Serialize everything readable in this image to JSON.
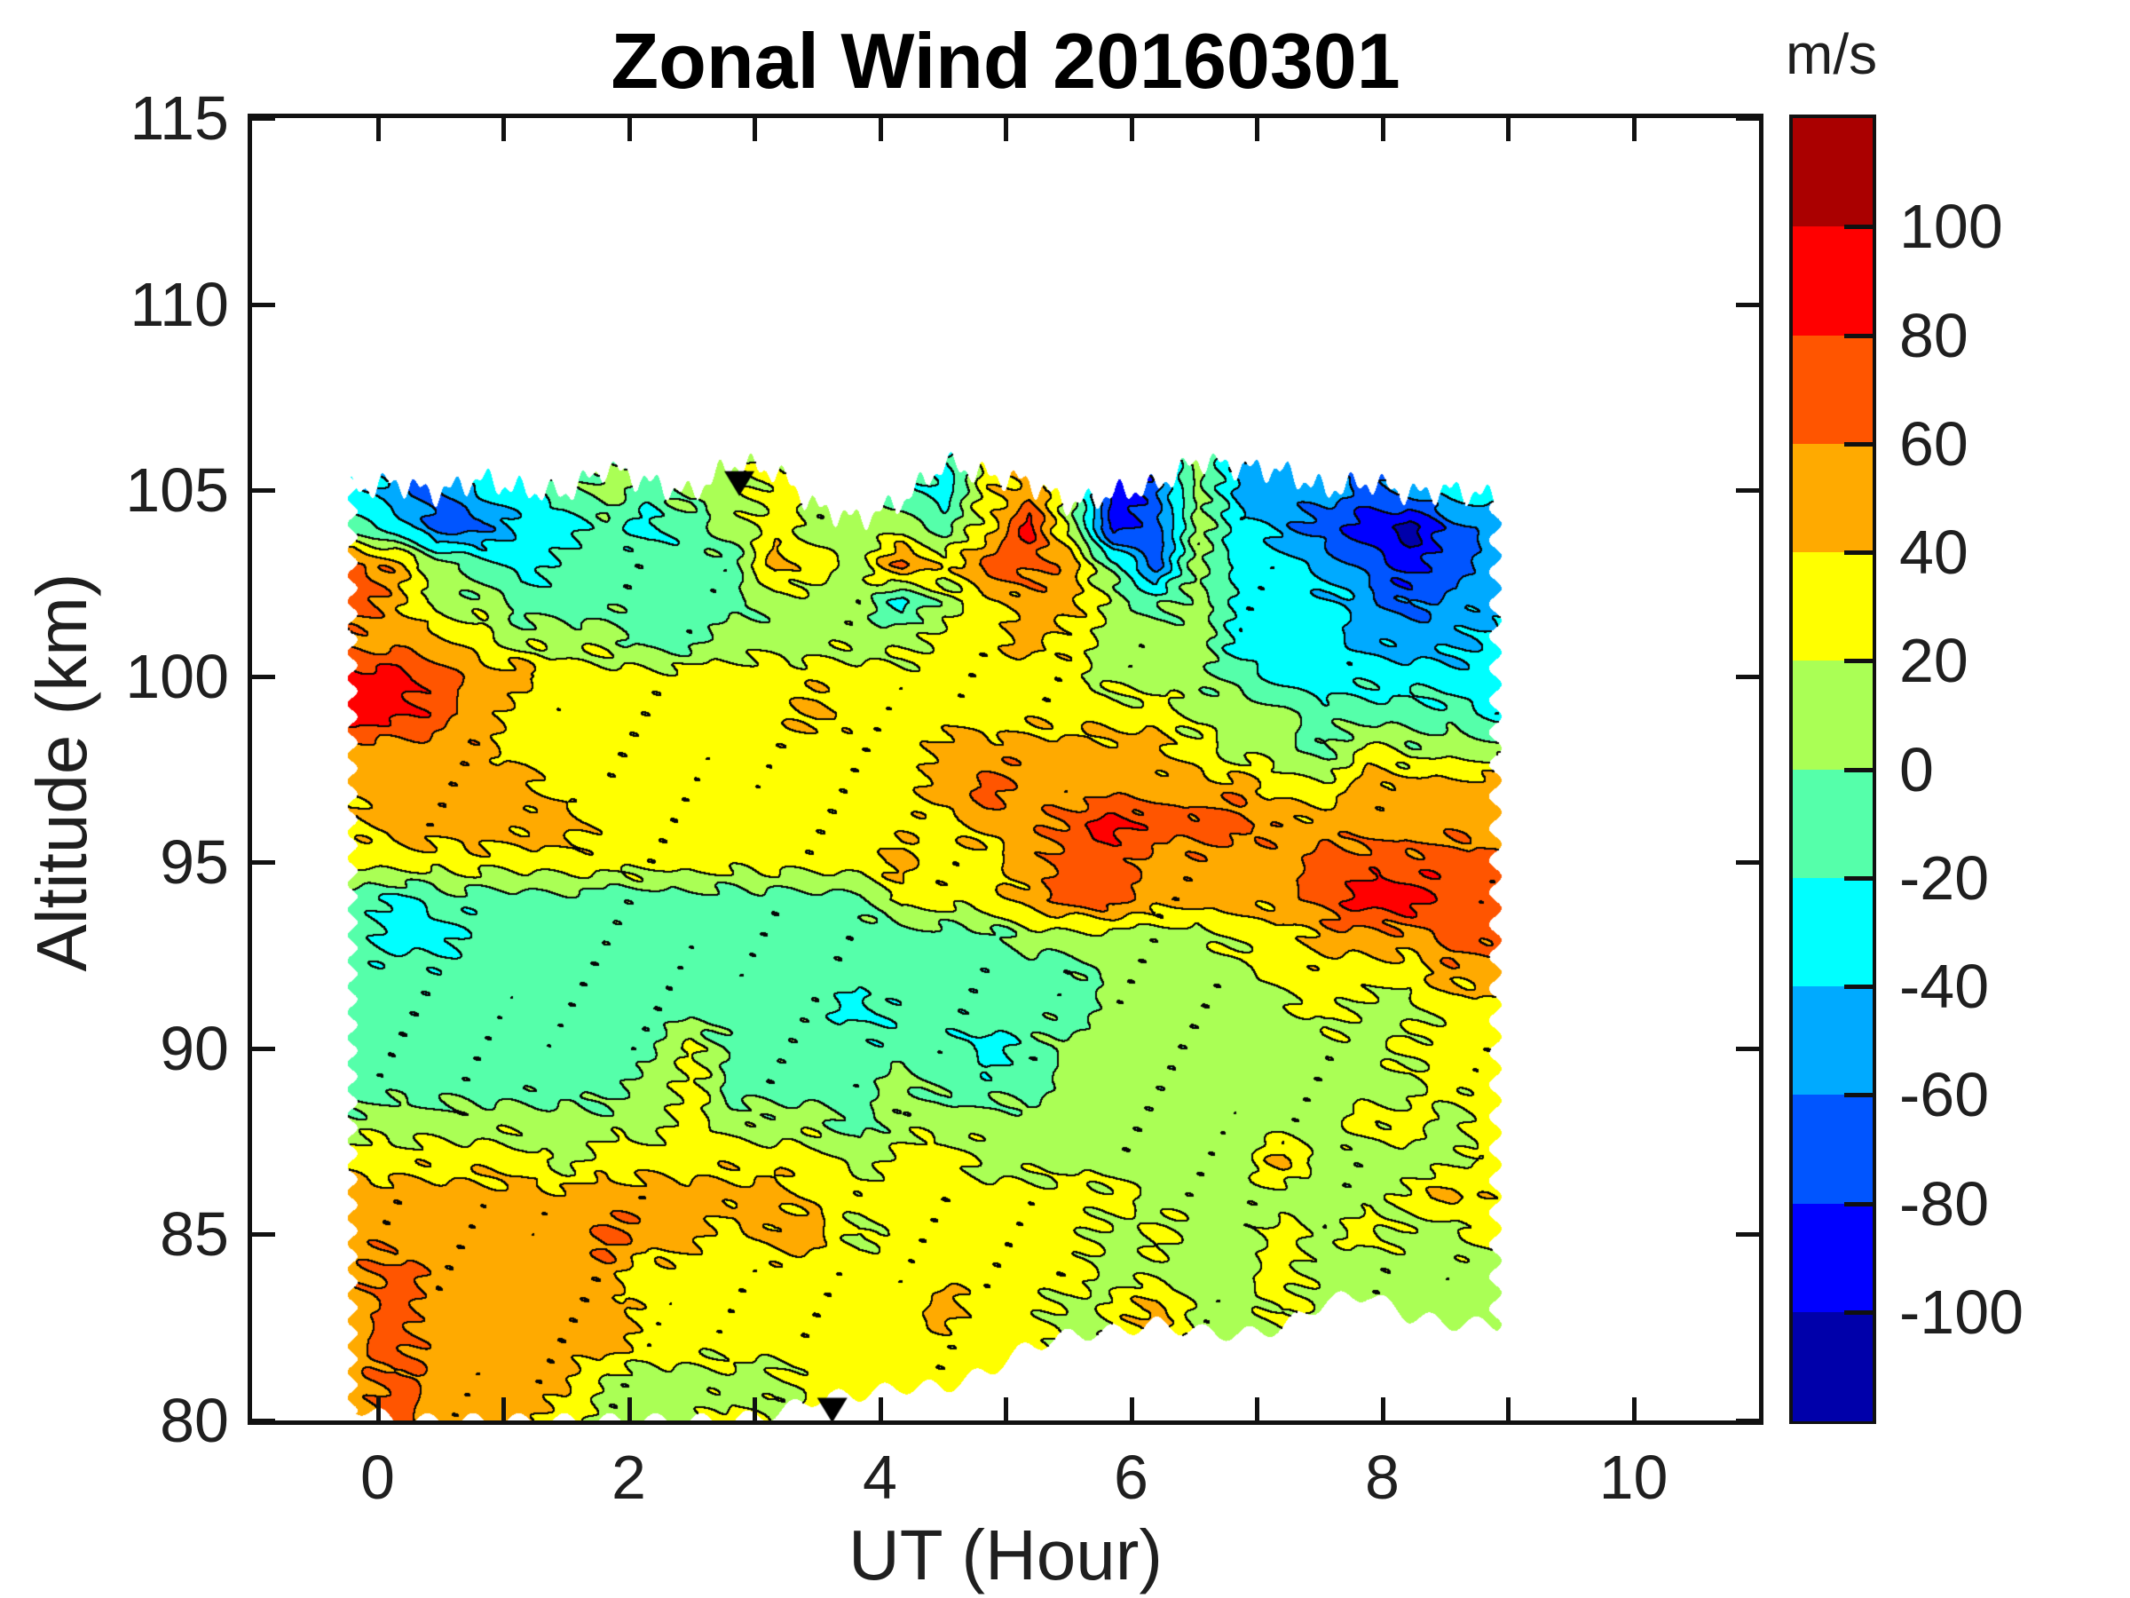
{
  "title": "Zonal Wind 20160301",
  "axes": {
    "xlabel": "UT (Hour)",
    "ylabel": "Altitude (km)",
    "x_tick_values": [
      0,
      2,
      4,
      6,
      8,
      10
    ],
    "x_tick_labels": [
      "0",
      "2",
      "4",
      "6",
      "8",
      "10"
    ],
    "x_minor_tick_values": [
      1,
      3,
      5,
      7,
      9
    ],
    "y_tick_values": [
      115,
      110,
      105,
      100,
      95,
      90,
      85,
      80
    ],
    "y_tick_labels": [
      "115",
      "110",
      "105",
      "100",
      "95",
      "90",
      "85",
      "80"
    ]
  },
  "colorbar": {
    "title": "m/s",
    "tick_labels": [
      "100",
      "80",
      "60",
      "40",
      "20",
      "0",
      "-20",
      "-40",
      "-60",
      "-80",
      "-100"
    ],
    "tick_values": [
      100,
      80,
      60,
      40,
      20,
      0,
      -20,
      -40,
      -60,
      -80,
      -100
    ],
    "segment_colors_top_to_bottom": [
      "#AA0000",
      "#FF0000",
      "#FF5500",
      "#FFAA00",
      "#FFFF00",
      "#AAFF55",
      "#55FFAA",
      "#00FFFF",
      "#00AAFF",
      "#0055FF",
      "#0000FF",
      "#0000AA"
    ]
  },
  "chart_data": {
    "type": "heatmap",
    "subtype": "filled_contour",
    "title": "Zonal Wind 20160301",
    "xlabel": "UT (Hour)",
    "ylabel": "Altitude (km)",
    "unit": "m/s",
    "xlim": [
      -1,
      11
    ],
    "ylim": [
      80,
      115
    ],
    "clim": [
      -120,
      120
    ],
    "level_step": 20,
    "band_colors_low_to_high": [
      "#0000AA",
      "#0000FF",
      "#0055FF",
      "#00AAFF",
      "#00FFFF",
      "#55FFAA",
      "#AAFF55",
      "#FFFF00",
      "#FFAA00",
      "#FF5500",
      "#FF0000",
      "#AA0000"
    ],
    "x_start": -0.2,
    "x_step": 0.33667,
    "y_start": 80,
    "y_step": 1.0,
    "x_hours": [
      -0.2,
      0.14,
      0.47,
      0.81,
      1.15,
      1.48,
      1.82,
      2.16,
      2.49,
      2.83,
      3.17,
      3.5,
      3.84,
      4.18,
      4.51,
      4.85,
      5.19,
      5.52,
      5.86,
      6.2,
      6.53,
      6.87,
      7.21,
      7.54,
      7.88,
      8.22,
      8.55,
      8.89
    ],
    "values_rows_80_to_106": [
      [
        50,
        70,
        50,
        50,
        50,
        30,
        10,
        10,
        10,
        30,
        10,
        30,
        30,
        30,
        30,
        30,
        30,
        10,
        10,
        50,
        10,
        10,
        10,
        10,
        10,
        10,
        10,
        10
      ],
      [
        50,
        70,
        50,
        50,
        50,
        50,
        10,
        10,
        10,
        10,
        10,
        30,
        30,
        30,
        30,
        30,
        30,
        10,
        10,
        50,
        10,
        10,
        10,
        10,
        10,
        10,
        10,
        10
      ],
      [
        50,
        70,
        50,
        50,
        50,
        50,
        50,
        30,
        30,
        30,
        30,
        30,
        30,
        30,
        30,
        30,
        30,
        10,
        10,
        50,
        10,
        10,
        10,
        10,
        10,
        10,
        10,
        10
      ],
      [
        50,
        70,
        50,
        50,
        50,
        50,
        50,
        30,
        30,
        30,
        30,
        30,
        30,
        30,
        50,
        30,
        30,
        10,
        30,
        50,
        10,
        10,
        30,
        10,
        10,
        10,
        10,
        10
      ],
      [
        50,
        70,
        50,
        50,
        50,
        50,
        50,
        30,
        30,
        30,
        30,
        30,
        30,
        30,
        30,
        30,
        30,
        30,
        10,
        10,
        10,
        10,
        30,
        10,
        10,
        10,
        10,
        10
      ],
      [
        50,
        50,
        50,
        50,
        50,
        50,
        70,
        50,
        50,
        30,
        50,
        50,
        10,
        30,
        30,
        30,
        30,
        30,
        10,
        30,
        10,
        10,
        30,
        10,
        30,
        10,
        10,
        30
      ],
      [
        50,
        50,
        50,
        50,
        50,
        50,
        50,
        50,
        50,
        50,
        50,
        30,
        30,
        30,
        30,
        30,
        30,
        30,
        30,
        10,
        10,
        10,
        10,
        10,
        10,
        30,
        50,
        30
      ],
      [
        30,
        30,
        30,
        30,
        30,
        10,
        30,
        30,
        30,
        30,
        30,
        30,
        10,
        30,
        30,
        10,
        10,
        10,
        10,
        10,
        10,
        10,
        50,
        10,
        10,
        10,
        10,
        30
      ],
      [
        10,
        10,
        10,
        10,
        10,
        10,
        10,
        10,
        30,
        10,
        10,
        10,
        -10,
        10,
        10,
        10,
        10,
        10,
        10,
        10,
        10,
        10,
        10,
        10,
        30,
        30,
        10,
        30
      ],
      [
        -10,
        -10,
        -10,
        -10,
        -10,
        -10,
        -10,
        10,
        30,
        -10,
        -10,
        -10,
        -10,
        10,
        -10,
        -10,
        -10,
        10,
        10,
        10,
        10,
        10,
        10,
        10,
        10,
        10,
        30,
        30
      ],
      [
        -10,
        -10,
        -10,
        -10,
        -10,
        -10,
        -10,
        -10,
        30,
        -10,
        -10,
        -10,
        -10,
        -10,
        -10,
        -30,
        -10,
        10,
        10,
        10,
        10,
        10,
        10,
        10,
        10,
        30,
        30,
        30
      ],
      [
        -10,
        -10,
        -10,
        -10,
        -10,
        -10,
        -10,
        -10,
        -10,
        -10,
        -10,
        -10,
        -30,
        -10,
        -10,
        -10,
        -10,
        -10,
        10,
        10,
        10,
        10,
        10,
        30,
        10,
        10,
        30,
        30
      ],
      [
        -10,
        -10,
        -10,
        -10,
        -10,
        -10,
        -10,
        -10,
        -10,
        -10,
        -10,
        -10,
        -10,
        -10,
        -10,
        -10,
        -10,
        -10,
        10,
        10,
        10,
        10,
        30,
        30,
        30,
        30,
        50,
        50
      ],
      [
        -10,
        -30,
        -30,
        -10,
        -10,
        -10,
        -10,
        -10,
        -10,
        -10,
        -10,
        -10,
        -10,
        -10,
        -10,
        -10,
        10,
        10,
        10,
        10,
        10,
        30,
        30,
        50,
        50,
        50,
        70,
        70
      ],
      [
        -10,
        -30,
        -10,
        -10,
        -10,
        -10,
        -10,
        -10,
        -10,
        -10,
        -10,
        -10,
        -10,
        30,
        30,
        30,
        50,
        70,
        70,
        50,
        50,
        50,
        50,
        70,
        90,
        90,
        70,
        70
      ],
      [
        30,
        30,
        30,
        30,
        30,
        30,
        30,
        30,
        30,
        30,
        30,
        30,
        30,
        50,
        30,
        30,
        50,
        70,
        70,
        50,
        50,
        50,
        50,
        70,
        70,
        70,
        70,
        70
      ],
      [
        30,
        50,
        50,
        50,
        50,
        50,
        30,
        30,
        30,
        30,
        30,
        30,
        30,
        30,
        30,
        50,
        50,
        70,
        90,
        70,
        70,
        70,
        50,
        50,
        50,
        50,
        50,
        50
      ],
      [
        50,
        50,
        50,
        50,
        50,
        30,
        30,
        30,
        30,
        30,
        30,
        30,
        30,
        30,
        50,
        70,
        50,
        50,
        50,
        50,
        50,
        50,
        30,
        30,
        50,
        50,
        50,
        50
      ],
      [
        50,
        50,
        50,
        50,
        30,
        30,
        30,
        30,
        30,
        30,
        30,
        30,
        30,
        30,
        50,
        50,
        50,
        50,
        50,
        50,
        30,
        10,
        10,
        -10,
        30,
        10,
        10,
        10
      ],
      [
        90,
        90,
        70,
        50,
        30,
        30,
        30,
        30,
        30,
        30,
        30,
        50,
        30,
        30,
        30,
        30,
        30,
        30,
        30,
        30,
        10,
        10,
        10,
        -10,
        -10,
        -10,
        -10,
        -30
      ],
      [
        90,
        90,
        70,
        50,
        50,
        30,
        30,
        30,
        30,
        30,
        30,
        30,
        30,
        30,
        30,
        30,
        30,
        30,
        10,
        10,
        10,
        -10,
        -30,
        -30,
        -30,
        -30,
        -30,
        -30
      ],
      [
        50,
        50,
        50,
        30,
        10,
        10,
        10,
        -10,
        -10,
        10,
        10,
        10,
        10,
        10,
        30,
        30,
        50,
        30,
        10,
        10,
        10,
        -30,
        -30,
        -30,
        -50,
        -50,
        -50,
        -30
      ],
      [
        70,
        50,
        10,
        10,
        -10,
        -10,
        -10,
        -10,
        -10,
        -10,
        10,
        10,
        10,
        -30,
        10,
        30,
        50,
        50,
        10,
        -10,
        10,
        -30,
        -30,
        -30,
        -50,
        -70,
        -50,
        -50
      ],
      [
        70,
        50,
        10,
        -10,
        -30,
        -10,
        -10,
        -10,
        -10,
        -10,
        50,
        30,
        10,
        70,
        30,
        70,
        70,
        50,
        -10,
        -70,
        10,
        -30,
        -30,
        -50,
        -70,
        -90,
        -70,
        -50
      ],
      [
        -10,
        -30,
        -70,
        -70,
        -30,
        -30,
        -10,
        -30,
        -10,
        10,
        30,
        10,
        10,
        10,
        -10,
        30,
        90,
        10,
        -90,
        -70,
        10,
        -30,
        -50,
        -70,
        -90,
        -110,
        -70,
        -50
      ],
      [
        -30,
        -50,
        -70,
        -30,
        -30,
        -10,
        10,
        -10,
        10,
        10,
        30,
        10,
        10,
        -10,
        -30,
        30,
        50,
        10,
        -90,
        -70,
        10,
        -50,
        -50,
        -50,
        -70,
        -50,
        -30,
        -30
      ],
      [
        -30,
        -50,
        -70,
        -30,
        -30,
        -10,
        10,
        -10,
        10,
        10,
        30,
        10,
        10,
        -10,
        -30,
        30,
        50,
        10,
        -90,
        -70,
        10,
        -50,
        -50,
        -50,
        -70,
        -50,
        -30,
        -30
      ]
    ],
    "top_boundary_km": [
      105.0,
      105.2,
      104.9,
      105.3,
      105.0,
      104.9,
      105.6,
      105.2,
      104.9,
      105.7,
      105.5,
      104.5,
      104.2,
      104.7,
      105.7,
      105.4,
      105.2,
      104.6,
      104.9,
      105.1,
      105.8,
      105.6,
      105.5,
      105.0,
      105.2,
      104.9,
      105.0,
      104.8
    ],
    "bottom_boundary_km": [
      80.4,
      80.0,
      80.0,
      80.0,
      80.0,
      80.0,
      80.0,
      80.0,
      80.0,
      80.0,
      80.2,
      80.6,
      80.7,
      80.9,
      80.9,
      81.3,
      82.0,
      82.3,
      82.4,
      82.6,
      82.4,
      82.3,
      82.5,
      83.2,
      83.4,
      82.8,
      82.6,
      82.6
    ],
    "markers": [
      {
        "shape": "triangle-down",
        "hour": 3.62,
        "km": 80.3
      },
      {
        "shape": "triangle-down",
        "hour": 2.88,
        "km": 105.2
      }
    ]
  }
}
